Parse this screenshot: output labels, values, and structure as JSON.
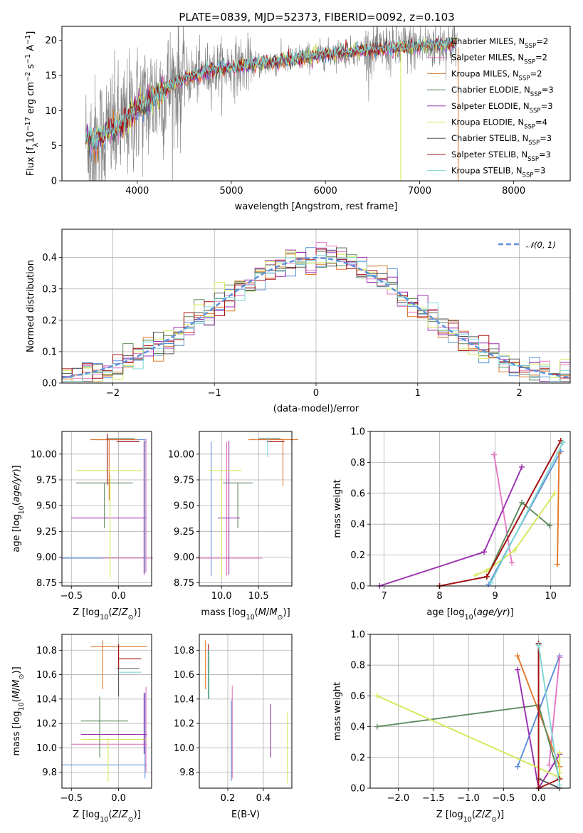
{
  "figure": {
    "title": "PLATE=0839, MJD=52373, FIBERID=0092, z=0.103"
  },
  "colors": {
    "Chabrier MILES": "#5b8fd9",
    "Salpeter MILES": "#e377c2",
    "Kroupa MILES": "#e0782a",
    "Chabrier ELODIE": "#5f8a5f",
    "Salpeter ELODIE": "#9b30b0",
    "Kroupa ELODIE": "#d4e85a",
    "Chabrier STELIB": "#555555",
    "Salpeter STELIB": "#aa1111",
    "Kroupa STELIB": "#7fd6d6",
    "data": "#808080",
    "normal": "#5b8fd9"
  },
  "legend_labels": [
    {
      "key": "Chabrier MILES",
      "text": "Chabrier MILES, N",
      "sub": "SSP",
      "val": "=2"
    },
    {
      "key": "Salpeter MILES",
      "text": "Salpeter MILES, N",
      "sub": "SSP",
      "val": "=2"
    },
    {
      "key": "Kroupa MILES",
      "text": "Kroupa MILES, N",
      "sub": "SSP",
      "val": "=2"
    },
    {
      "key": "Chabrier ELODIE",
      "text": "Chabrier ELODIE, N",
      "sub": "SSP",
      "val": "=3"
    },
    {
      "key": "Salpeter ELODIE",
      "text": "Salpeter ELODIE, N",
      "sub": "SSP",
      "val": "=3"
    },
    {
      "key": "Kroupa ELODIE",
      "text": "Kroupa ELODIE, N",
      "sub": "SSP",
      "val": "=4"
    },
    {
      "key": "Chabrier STELIB",
      "text": "Chabrier STELIB, N",
      "sub": "SSP",
      "val": "=3"
    },
    {
      "key": "Salpeter STELIB",
      "text": "Salpeter STELIB, N",
      "sub": "SSP",
      "val": "=3"
    },
    {
      "key": "Kroupa STELIB",
      "text": "Kroupa STELIB, N",
      "sub": "SSP",
      "val": "=3"
    }
  ],
  "chart_data": [
    {
      "id": "spectrum",
      "type": "line",
      "xlabel": "wavelength [Angstrom, rest frame]",
      "ylabel": "Flux [f_λ 10^-17 erg cm^-2 s^-1 A^-1]",
      "xlim": [
        3200,
        8600
      ],
      "ylim": [
        0,
        22
      ],
      "xticks": [
        4000,
        5000,
        6000,
        7000,
        8000
      ],
      "yticks": [
        0,
        5,
        10,
        15,
        20
      ],
      "legend": "upper-right",
      "continuum": {
        "x": [
          3450,
          3550,
          3700,
          3850,
          4000,
          4200,
          4400,
          4600,
          4800,
          5000,
          5200,
          5500,
          5800,
          6000,
          6300,
          6600,
          6900,
          7200,
          7400
        ],
        "y": [
          6.0,
          6.0,
          7.0,
          8.0,
          10.5,
          12.0,
          14.0,
          15.0,
          15.8,
          16.2,
          16.5,
          17.0,
          17.6,
          18.0,
          18.4,
          18.7,
          19.0,
          19.3,
          19.7
        ]
      },
      "dropouts": [
        6800,
        7410
      ]
    },
    {
      "id": "residuals",
      "type": "histogram",
      "xlabel": "(data-model)/error",
      "ylabel": "Normed distribution",
      "xlim": [
        -2.5,
        2.5
      ],
      "ylim": [
        0,
        0.49
      ],
      "xticks": [
        -2,
        -1,
        0,
        1,
        2
      ],
      "yticks": [
        0.0,
        0.1,
        0.2,
        0.3,
        0.4
      ],
      "grid": true,
      "legend": "upper-right",
      "reference_label": "N(0,1)",
      "bin_width": 0.1
    },
    {
      "id": "age-vs-Z",
      "type": "errorbar",
      "xlabel": "Z [log10(Z/Z⊙)]",
      "ylabel": "age [log10(age/yr)]",
      "xlim": [
        -0.6,
        0.35
      ],
      "ylim": [
        8.72,
        10.22
      ],
      "xticks": [
        -0.5,
        0.0
      ],
      "yticks": [
        8.75,
        9.0,
        9.25,
        9.5,
        9.75,
        10.0
      ],
      "grid": true,
      "points": [
        {
          "model": "Chabrier MILES",
          "x": -0.15,
          "xerr": 0.45,
          "y": 8.99,
          "yerr": 0.0
        },
        {
          "model": "Chabrier MILES",
          "x": 0.02,
          "xerr": 0.0,
          "y": 10.14,
          "yerr": 0.0
        },
        {
          "model": "Salpeter MILES",
          "x": 0.1,
          "xerr": 0.0,
          "y": 8.99,
          "yerr": 0.0
        },
        {
          "model": "Kroupa MILES",
          "x": -0.1,
          "xerr": 0.0,
          "y": 9.85,
          "yerr": 0.3
        },
        {
          "model": "Kroupa MILES",
          "x": -0.05,
          "xerr": 0.25,
          "y": 10.14,
          "yerr": 0.0
        },
        {
          "model": "Chabrier ELODIE",
          "x": -0.15,
          "xerr": 0.3,
          "y": 9.72,
          "yerr": 0.0
        },
        {
          "model": "Chabrier ELODIE",
          "x": -0.15,
          "xerr": 0.0,
          "y": 9.5,
          "yerr": 0.22
        },
        {
          "model": "Salpeter ELODIE",
          "x": -0.1,
          "xerr": 0.4,
          "y": 9.38,
          "yerr": 0.0
        },
        {
          "model": "Salpeter ELODIE",
          "x": 0.27,
          "xerr": 0.0,
          "y": 9.48,
          "yerr": 0.65
        },
        {
          "model": "Kroupa ELODIE",
          "x": -0.1,
          "xerr": 0.35,
          "y": 9.84,
          "yerr": 0.0
        },
        {
          "model": "Kroupa ELODIE",
          "x": -0.09,
          "xerr": 0.0,
          "y": 9.3,
          "yerr": 0.5
        },
        {
          "model": "Chabrier STELIB",
          "x": 0.02,
          "xerr": 0.15,
          "y": 10.15,
          "yerr": 0.0
        },
        {
          "model": "Salpeter STELIB",
          "x": 0.1,
          "xerr": 0.12,
          "y": 10.12,
          "yerr": 0.0
        },
        {
          "model": "Salpeter STELIB",
          "x": -0.12,
          "xerr": 0.0,
          "y": 9.95,
          "yerr": 0.25
        },
        {
          "model": "Kroupa STELIB",
          "x": 0.28,
          "xerr": 0.0,
          "y": 9.5,
          "yerr": 0.65
        },
        {
          "model": "Salpeter MILES",
          "x": 0.29,
          "xerr": 0.0,
          "y": 9.5,
          "yerr": 0.65
        }
      ]
    },
    {
      "id": "age-vs-mass",
      "type": "errorbar",
      "xlabel": "mass [log10(M/M⊙)]",
      "xlim": [
        9.7,
        10.95
      ],
      "ylim": [
        8.72,
        10.22
      ],
      "xticks": [
        10.0,
        10.5
      ],
      "yticks": [
        8.75,
        9.0,
        9.25,
        9.5,
        9.75,
        10.0
      ],
      "grid": true,
      "points": [
        {
          "model": "Chabrier MILES",
          "x": 9.86,
          "xerr": 0.0,
          "y": 9.47,
          "yerr": 0.65
        },
        {
          "model": "Salpeter MILES",
          "x": 10.07,
          "xerr": 0.0,
          "y": 9.47,
          "yerr": 0.65
        },
        {
          "model": "Salpeter MILES",
          "x": 10.1,
          "xerr": 0.45,
          "y": 8.99,
          "yerr": 0.0
        },
        {
          "model": "Kroupa MILES",
          "x": 10.83,
          "xerr": 0.0,
          "y": 9.92,
          "yerr": 0.23
        },
        {
          "model": "Kroupa MILES",
          "x": 10.7,
          "xerr": 0.0,
          "y": 10.14,
          "yerr": 0.0
        },
        {
          "model": "Chabrier ELODIE",
          "x": 10.22,
          "xerr": 0.2,
          "y": 9.72,
          "yerr": 0.0
        },
        {
          "model": "Chabrier ELODIE",
          "x": 10.22,
          "xerr": 0.0,
          "y": 9.5,
          "yerr": 0.22
        },
        {
          "model": "Salpeter ELODIE",
          "x": 10.1,
          "xerr": 0.0,
          "y": 9.48,
          "yerr": 0.65
        },
        {
          "model": "Salpeter ELODIE",
          "x": 10.1,
          "xerr": 0.15,
          "y": 9.38,
          "yerr": 0.0
        },
        {
          "model": "Kroupa ELODIE",
          "x": 10.0,
          "xerr": 0.0,
          "y": 9.3,
          "yerr": 0.5
        },
        {
          "model": "Kroupa ELODIE",
          "x": 10.05,
          "xerr": 0.22,
          "y": 9.84,
          "yerr": 0.0
        },
        {
          "model": "Chabrier STELIB",
          "x": 10.65,
          "xerr": 0.15,
          "y": 10.15,
          "yerr": 0.0
        },
        {
          "model": "Salpeter STELIB",
          "x": 10.73,
          "xerr": 0.12,
          "y": 10.12,
          "yerr": 0.0
        },
        {
          "model": "Kroupa STELIB",
          "x": 10.62,
          "xerr": 0.0,
          "y": 10.07,
          "yerr": 0.1
        }
      ]
    },
    {
      "id": "weight-vs-age",
      "type": "line",
      "xlabel": "age [log10(age/yr)]",
      "ylabel": "mass weight",
      "xlim": [
        6.75,
        10.35
      ],
      "ylim": [
        0,
        1.0
      ],
      "xticks": [
        7,
        8,
        9,
        10
      ],
      "yticks": [
        0.0,
        0.2,
        0.4,
        0.6,
        0.8,
        1.0
      ],
      "grid": true,
      "series": [
        {
          "model": "Chabrier MILES",
          "x": [
            8.88,
            10.18
          ],
          "y": [
            0.01,
            0.87
          ]
        },
        {
          "model": "Salpeter MILES",
          "x": [
            8.98,
            9.3
          ],
          "y": [
            0.85,
            0.15
          ]
        },
        {
          "model": "Kroupa MILES",
          "x": [
            10.12,
            10.15
          ],
          "y": [
            0.14,
            0.86
          ]
        },
        {
          "model": "Chabrier ELODIE",
          "x": [
            8.85,
            9.48,
            9.98
          ],
          "y": [
            0.06,
            0.54,
            0.39
          ]
        },
        {
          "model": "Salpeter ELODIE",
          "x": [
            6.92,
            8.8,
            9.48
          ],
          "y": [
            0.0,
            0.22,
            0.77
          ]
        },
        {
          "model": "Kroupa ELODIE",
          "x": [
            8.65,
            8.85,
            9.35,
            10.07
          ],
          "y": [
            0.07,
            0.1,
            0.23,
            0.6
          ]
        },
        {
          "model": "Chabrier STELIB",
          "x": [
            8.0,
            8.85,
            10.18
          ],
          "y": [
            0.0,
            0.06,
            0.94
          ]
        },
        {
          "model": "Salpeter STELIB",
          "x": [
            8.0,
            8.85,
            10.18
          ],
          "y": [
            0.0,
            0.06,
            0.94
          ]
        },
        {
          "model": "Kroupa STELIB",
          "x": [
            8.92,
            10.22
          ],
          "y": [
            0.02,
            0.93
          ]
        }
      ]
    },
    {
      "id": "mass-vs-Z",
      "type": "errorbar",
      "xlabel": "Z [log10(Z/Z⊙)]",
      "ylabel": "mass [log10(M/M⊙)]",
      "xlim": [
        -0.6,
        0.35
      ],
      "ylim": [
        9.67,
        10.93
      ],
      "xticks": [
        -0.5,
        0.0
      ],
      "yticks": [
        9.8,
        10.0,
        10.2,
        10.4,
        10.6,
        10.8
      ],
      "grid": true,
      "points": [
        {
          "model": "Chabrier MILES",
          "x": -0.15,
          "xerr": 0.45,
          "y": 9.86,
          "yerr": 0.0
        },
        {
          "model": "Chabrier MILES",
          "x": 0.28,
          "xerr": 0.0,
          "y": 10.1,
          "yerr": 0.35
        },
        {
          "model": "Salpeter MILES",
          "x": -0.1,
          "xerr": 0.4,
          "y": 10.03,
          "yerr": 0.0
        },
        {
          "model": "Salpeter MILES",
          "x": 0.29,
          "xerr": 0.0,
          "y": 10.15,
          "yerr": 0.35
        },
        {
          "model": "Kroupa MILES",
          "x": -0.17,
          "xerr": 0.0,
          "y": 10.68,
          "yerr": 0.2
        },
        {
          "model": "Kroupa MILES",
          "x": 0.0,
          "xerr": 0.3,
          "y": 10.83,
          "yerr": 0.0
        },
        {
          "model": "Chabrier ELODIE",
          "x": -0.15,
          "xerr": 0.25,
          "y": 10.22,
          "yerr": 0.0
        },
        {
          "model": "Chabrier ELODIE",
          "x": -0.2,
          "xerr": 0.0,
          "y": 10.17,
          "yerr": 0.25
        },
        {
          "model": "Salpeter ELODIE",
          "x": -0.05,
          "xerr": 0.35,
          "y": 10.11,
          "yerr": 0.0
        },
        {
          "model": "Kroupa ELODIE",
          "x": -0.05,
          "xerr": 0.35,
          "y": 10.07,
          "yerr": 0.0
        },
        {
          "model": "Kroupa ELODIE",
          "x": -0.11,
          "xerr": 0.0,
          "y": 9.9,
          "yerr": 0.18
        },
        {
          "model": "Chabrier STELIB",
          "x": 0.1,
          "xerr": 0.12,
          "y": 10.65,
          "yerr": 0.0
        },
        {
          "model": "Chabrier STELIB",
          "x": 0.0,
          "xerr": 0.0,
          "y": 10.63,
          "yerr": 0.21
        },
        {
          "model": "Salpeter STELIB",
          "x": 0.12,
          "xerr": 0.12,
          "y": 10.73,
          "yerr": 0.0
        },
        {
          "model": "Salpeter STELIB",
          "x": 0.0,
          "xerr": 0.0,
          "y": 10.75,
          "yerr": 0.1
        },
        {
          "model": "Kroupa STELIB",
          "x": 0.12,
          "xerr": 0.12,
          "y": 10.62,
          "yerr": 0.0
        },
        {
          "model": "Salpeter ELODIE",
          "x": 0.27,
          "xerr": 0.0,
          "y": 10.2,
          "yerr": 0.25
        }
      ]
    },
    {
      "id": "mass-vs-EBV",
      "type": "errorbar",
      "xlabel": "E(B-V)",
      "xlim": [
        0.04,
        0.56
      ],
      "ylim": [
        9.67,
        10.93
      ],
      "xticks": [
        0.2,
        0.4
      ],
      "yticks": [
        9.8,
        10.0,
        10.2,
        10.4,
        10.6,
        10.8
      ],
      "grid": true,
      "points": [
        {
          "model": "Kroupa MILES",
          "x": 0.075,
          "xerr": 0.0,
          "y": 10.68,
          "yerr": 0.2
        },
        {
          "model": "Salpeter STELIB",
          "x": 0.09,
          "xerr": 0.0,
          "y": 10.75,
          "yerr": 0.1
        },
        {
          "model": "Chabrier ELODIE",
          "x": 0.09,
          "xerr": 0.0,
          "y": 10.6,
          "yerr": 0.2
        },
        {
          "model": "Kroupa STELIB",
          "x": 0.095,
          "xerr": 0.0,
          "y": 10.6,
          "yerr": 0.2
        },
        {
          "model": "Chabrier MILES",
          "x": 0.22,
          "xerr": 0.0,
          "y": 10.06,
          "yerr": 0.33
        },
        {
          "model": "Salpeter MILES",
          "x": 0.225,
          "xerr": 0.0,
          "y": 10.13,
          "yerr": 0.38
        },
        {
          "model": "Salpeter ELODIE",
          "x": 0.44,
          "xerr": 0.0,
          "y": 10.14,
          "yerr": 0.22
        },
        {
          "model": "Kroupa ELODIE",
          "x": 0.535,
          "xerr": 0.0,
          "y": 10.0,
          "yerr": 0.29
        }
      ]
    },
    {
      "id": "weight-vs-Z",
      "type": "line",
      "xlabel": "Z [log10(Z/Z⊙)]",
      "ylabel": "mass weight",
      "xlim": [
        -2.4,
        0.45
      ],
      "ylim": [
        0,
        1.0
      ],
      "xticks": [
        -2.0,
        -1.5,
        -1.0,
        -0.5,
        0.0
      ],
      "yticks": [
        0.0,
        0.2,
        0.4,
        0.6,
        0.8,
        1.0
      ],
      "grid": true,
      "series": [
        {
          "model": "Chabrier MILES",
          "x": [
            -0.3,
            0.3
          ],
          "y": [
            0.14,
            0.86
          ]
        },
        {
          "model": "Salpeter MILES",
          "x": [
            0.3,
            0.15
          ],
          "y": [
            0.85,
            0.15
          ]
        },
        {
          "model": "Kroupa MILES",
          "x": [
            -0.3,
            0.3
          ],
          "y": [
            0.86,
            0.14
          ]
        },
        {
          "model": "Chabrier ELODIE",
          "x": [
            -2.3,
            0.0,
            0.3
          ],
          "y": [
            0.4,
            0.54,
            0.06
          ]
        },
        {
          "model": "Salpeter ELODIE",
          "x": [
            -0.3,
            0.0,
            0.3
          ],
          "y": [
            0.77,
            0.0,
            0.22
          ]
        },
        {
          "model": "Kroupa ELODIE",
          "x": [
            -2.3,
            0.3,
            0.3,
            0.3
          ],
          "y": [
            0.6,
            0.07,
            0.1,
            0.23
          ]
        },
        {
          "model": "Chabrier STELIB",
          "x": [
            0.0,
            0.0,
            0.3
          ],
          "y": [
            0.94,
            0.06,
            0.0
          ]
        },
        {
          "model": "Salpeter STELIB",
          "x": [
            0.0,
            0.0,
            0.3
          ],
          "y": [
            0.94,
            0.0,
            0.06
          ]
        },
        {
          "model": "Kroupa STELIB",
          "x": [
            0.0,
            0.3
          ],
          "y": [
            0.93,
            0.02
          ]
        }
      ]
    }
  ]
}
